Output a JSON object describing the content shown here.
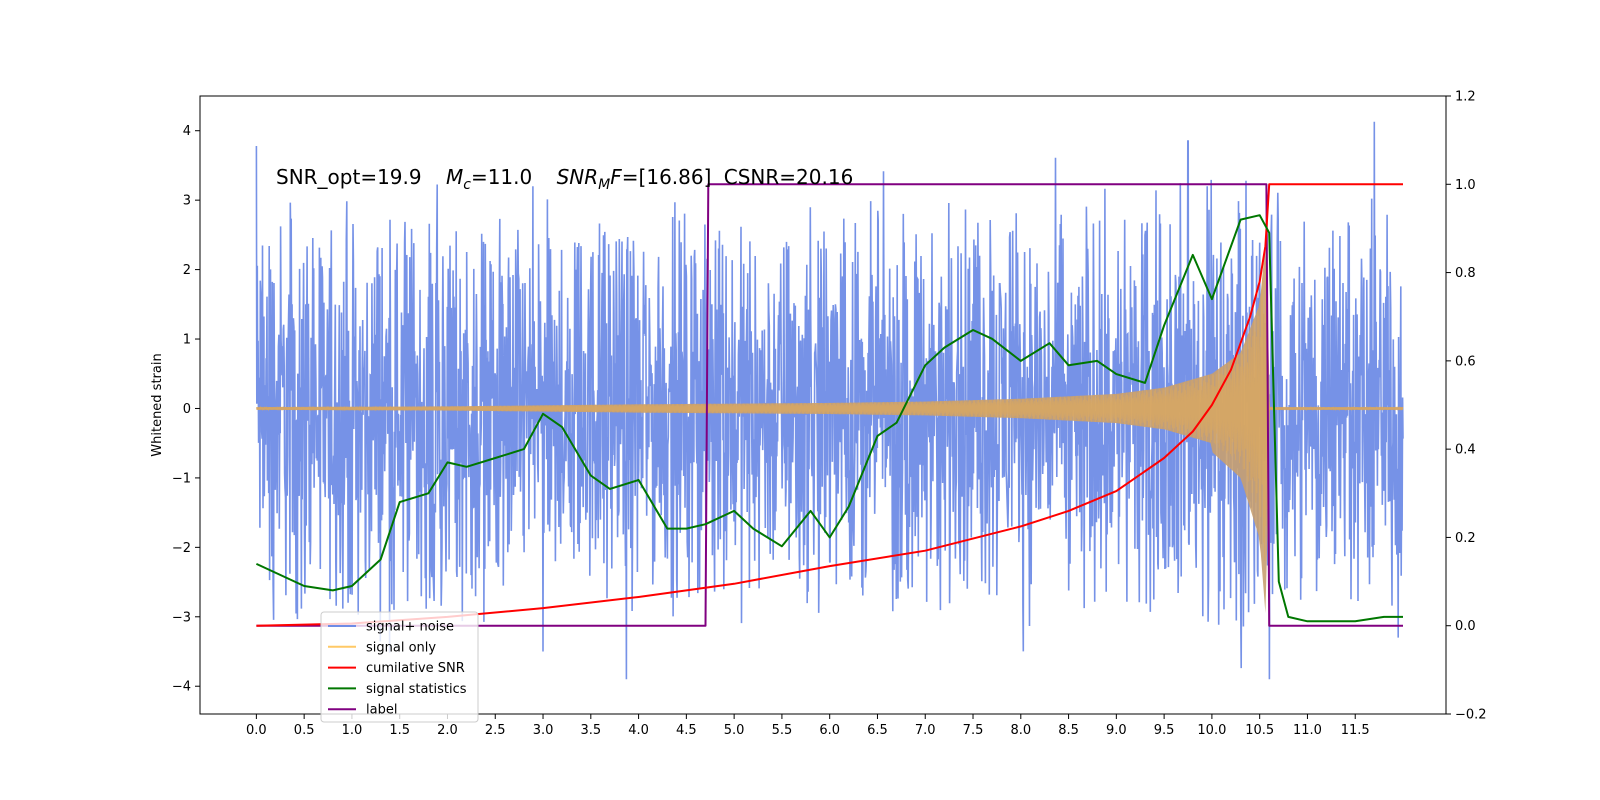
{
  "chart_data": {
    "type": "line",
    "title": {
      "snr_opt": "SNR_opt=19.9",
      "mc_symbol": "M",
      "mc_sub": "c",
      "mc_value": "=11.0",
      "snrmf_symbol": "SNR",
      "snrmf_sub": "M",
      "snrmf_f": "F",
      "snrmf_value": "=[16.86]",
      "csnr": "CSNR=20.16"
    },
    "ylabel": "Whitened strain",
    "xlim": [
      -0.59,
      12.45
    ],
    "ylim_left": [
      -4.4,
      4.5
    ],
    "ylim_right": [
      -0.2,
      1.2
    ],
    "x_ticks": [
      "0.0",
      "0.5",
      "1.0",
      "1.5",
      "2.0",
      "2.5",
      "3.0",
      "3.5",
      "4.0",
      "4.5",
      "5.0",
      "5.5",
      "6.0",
      "6.5",
      "7.0",
      "7.5",
      "8.0",
      "8.5",
      "9.0",
      "9.5",
      "10.0",
      "10.5",
      "11.0",
      "11.5"
    ],
    "y_ticks_left": [
      "−4",
      "−3",
      "−2",
      "−1",
      "0",
      "1",
      "2",
      "3",
      "4"
    ],
    "y_ticks_right": [
      "−0.2",
      "0.0",
      "0.2",
      "0.4",
      "0.6",
      "0.8",
      "1.0",
      "1.2"
    ],
    "legend_position": "lower-left",
    "legend": [
      {
        "label": "signal+ noise",
        "color": "#6f8ce6"
      },
      {
        "label": "signal only",
        "color": "#ffc966"
      },
      {
        "label": "cumilative SNR",
        "color": "#ff0000"
      },
      {
        "label": "signal statistics",
        "color": "#007700"
      },
      {
        "label": "label",
        "color": "#800080"
      }
    ],
    "series": [
      {
        "name": "signal+ noise",
        "axis": "left",
        "color": "#6f8ce6",
        "description_of_values": "noise envelope (approx. peak amplitude) over time",
        "x": [
          0.0,
          2.0,
          4.0,
          6.0,
          8.0,
          9.5,
          10.0,
          10.5,
          10.57,
          10.6,
          11.0,
          12.0
        ],
        "upper": [
          2.5,
          2.4,
          2.3,
          2.3,
          2.4,
          2.4,
          2.6,
          2.8,
          1.5,
          2.5,
          2.3,
          2.3
        ],
        "lower": [
          -2.5,
          -2.4,
          -2.3,
          -2.3,
          -2.4,
          -2.4,
          -2.6,
          -2.8,
          -2.0,
          -2.5,
          -2.3,
          -2.3
        ],
        "extreme_points": [
          [
            0.0,
            3.78
          ],
          [
            3.0,
            -3.5
          ],
          [
            3.87,
            -3.9
          ],
          [
            9.75,
            3.85
          ],
          [
            10.6,
            -3.9
          ],
          [
            11.7,
            4.13
          ],
          [
            11.95,
            -3.3
          ]
        ]
      },
      {
        "name": "signal only",
        "axis": "left",
        "color": "#ffc966",
        "x": [
          0.0,
          2.0,
          4.0,
          6.0,
          7.0,
          8.0,
          9.0,
          9.5,
          10.0,
          10.3,
          10.5,
          10.57,
          10.6,
          12.0
        ],
        "amplitude": [
          0.02,
          0.03,
          0.06,
          0.08,
          0.1,
          0.14,
          0.21,
          0.3,
          0.5,
          0.8,
          1.5,
          2.5,
          0.02,
          0.02
        ]
      },
      {
        "name": "cumilative SNR",
        "axis": "right",
        "color": "#ff0000",
        "x": [
          0.0,
          1.0,
          2.0,
          3.0,
          4.0,
          5.0,
          6.0,
          7.0,
          8.0,
          8.5,
          9.0,
          9.5,
          9.8,
          10.0,
          10.2,
          10.4,
          10.5,
          10.56,
          10.6,
          12.0
        ],
        "values": [
          0.0,
          0.005,
          0.02,
          0.04,
          0.065,
          0.095,
          0.135,
          0.17,
          0.225,
          0.26,
          0.305,
          0.38,
          0.44,
          0.5,
          0.58,
          0.7,
          0.78,
          0.86,
          1.0,
          1.0
        ]
      },
      {
        "name": "signal statistics",
        "axis": "right",
        "color": "#007700",
        "x": [
          0.0,
          0.5,
          0.8,
          1.0,
          1.3,
          1.5,
          1.8,
          2.0,
          2.2,
          2.5,
          2.8,
          3.0,
          3.2,
          3.5,
          3.7,
          4.0,
          4.3,
          4.5,
          4.7,
          5.0,
          5.2,
          5.5,
          5.8,
          6.0,
          6.2,
          6.5,
          6.7,
          7.0,
          7.2,
          7.5,
          7.7,
          8.0,
          8.3,
          8.5,
          8.8,
          9.0,
          9.3,
          9.5,
          9.8,
          10.0,
          10.3,
          10.5,
          10.6,
          10.7,
          10.8,
          11.0,
          11.5,
          11.8,
          12.0
        ],
        "values": [
          0.14,
          0.09,
          0.08,
          0.09,
          0.15,
          0.28,
          0.3,
          0.37,
          0.36,
          0.38,
          0.4,
          0.48,
          0.45,
          0.34,
          0.31,
          0.33,
          0.22,
          0.22,
          0.23,
          0.26,
          0.22,
          0.18,
          0.26,
          0.2,
          0.27,
          0.43,
          0.46,
          0.59,
          0.63,
          0.67,
          0.65,
          0.6,
          0.64,
          0.59,
          0.6,
          0.57,
          0.55,
          0.68,
          0.84,
          0.74,
          0.92,
          0.93,
          0.89,
          0.1,
          0.02,
          0.01,
          0.01,
          0.02,
          0.02
        ]
      },
      {
        "name": "label",
        "axis": "right",
        "color": "#800080",
        "x": [
          0.0,
          4.7,
          4.73,
          10.57,
          10.6,
          12.0
        ],
        "values": [
          0.0,
          0.0,
          1.0,
          1.0,
          0.0,
          0.0
        ]
      }
    ]
  }
}
